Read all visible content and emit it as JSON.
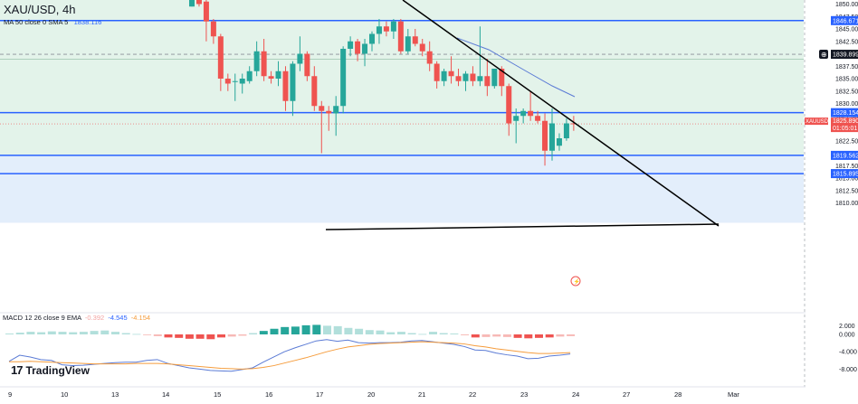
{
  "header": {
    "symbol": "XAU/USD, 4h",
    "indicator_label": "MA 50 close 0 SMA 5",
    "indicator_value": "1838.116"
  },
  "macd_header": {
    "label": "MACD 12 26 close 9 EMA",
    "hist": "-0.392",
    "macd": "-4.545",
    "signal": "-4.154"
  },
  "logo_text": "TradingView",
  "colors": {
    "up": "#26a69a",
    "down": "#ef5350",
    "hline": "#2962ff",
    "ma": "#5b7bd5",
    "trend": "#000000",
    "zone_green": "#e3f3ea",
    "zone_blue": "#e3eefb",
    "macd": "#5b7bd5",
    "signal": "#f59c3c"
  },
  "chart_data": {
    "type": "candlestick",
    "y_range": [
      1807.5,
      1850.5
    ],
    "y_ticks": [
      "1850.000",
      "1847.500",
      "1845.000",
      "1842.500",
      "1840.000",
      "1837.500",
      "1835.000",
      "1832.500",
      "1830.000",
      "1827.500",
      "1825.000",
      "1822.500",
      "1820.000",
      "1817.500",
      "1815.000",
      "1812.500",
      "1810.000"
    ],
    "x_ticks": [
      "9",
      "10",
      "13",
      "14",
      "15",
      "16",
      "17",
      "20",
      "21",
      "22",
      "23",
      "24",
      "27",
      "28",
      "Mar"
    ],
    "price_labels": [
      {
        "value": 1846.671,
        "text": "1846.671",
        "style": "blue"
      },
      {
        "value": 1839.899,
        "text": "1839.899",
        "style": "dark"
      },
      {
        "value": 1828.154,
        "text": "1828.154",
        "style": "blue"
      },
      {
        "value": 1825.89,
        "text": "XAUUSD",
        "text2": "1825.890",
        "text3": "01:05:01",
        "style": "red"
      },
      {
        "value": 1819.562,
        "text": "1819.562",
        "style": "blue"
      },
      {
        "value": 1815.895,
        "text": "1815.895",
        "style": "blue"
      }
    ],
    "horizontal_lines": [
      1846.671,
      1828.154,
      1819.562,
      1815.895
    ],
    "dashed_line": 1839.899,
    "current_price": 1825.89,
    "zones": [
      {
        "from": 1828.154,
        "to": 1846.671,
        "color": "green"
      },
      {
        "from": 1819.562,
        "to": 1828.154,
        "color": "green"
      },
      {
        "from": 1806.0,
        "to": 1819.562,
        "color": "blue"
      }
    ],
    "candles": [
      {
        "o": 1849.5,
        "h": 1851.5,
        "l": 1849.5,
        "c": 1851.5
      },
      {
        "o": 1851.5,
        "h": 1852.0,
        "l": 1849.5,
        "c": 1850.0
      },
      {
        "o": 1850.5,
        "h": 1851.5,
        "l": 1842.5,
        "c": 1846.5
      },
      {
        "o": 1846.5,
        "h": 1847.0,
        "l": 1842.0,
        "c": 1843.5
      },
      {
        "o": 1843.5,
        "h": 1844.0,
        "l": 1832.5,
        "c": 1835.0
      },
      {
        "o": 1835.0,
        "h": 1836.0,
        "l": 1832.5,
        "c": 1834.0
      },
      {
        "o": 1834.5,
        "h": 1836.0,
        "l": 1830.5,
        "c": 1834.5
      },
      {
        "o": 1834.0,
        "h": 1836.0,
        "l": 1832.0,
        "c": 1835.0
      },
      {
        "o": 1834.5,
        "h": 1837.5,
        "l": 1834.0,
        "c": 1836.5
      },
      {
        "o": 1836.5,
        "h": 1842.5,
        "l": 1835.5,
        "c": 1840.5
      },
      {
        "o": 1840.5,
        "h": 1843.0,
        "l": 1834.5,
        "c": 1835.5
      },
      {
        "o": 1835.5,
        "h": 1836.5,
        "l": 1834.0,
        "c": 1835.0
      },
      {
        "o": 1835.0,
        "h": 1838.5,
        "l": 1833.5,
        "c": 1836.5
      },
      {
        "o": 1836.5,
        "h": 1837.5,
        "l": 1828.5,
        "c": 1830.5
      },
      {
        "o": 1830.5,
        "h": 1838.5,
        "l": 1827.5,
        "c": 1838.0
      },
      {
        "o": 1838.0,
        "h": 1843.5,
        "l": 1836.5,
        "c": 1840.0
      },
      {
        "o": 1840.0,
        "h": 1840.5,
        "l": 1834.5,
        "c": 1835.5
      },
      {
        "o": 1835.5,
        "h": 1837.5,
        "l": 1828.5,
        "c": 1829.5
      },
      {
        "o": 1829.5,
        "h": 1830.5,
        "l": 1820.0,
        "c": 1828.5
      },
      {
        "o": 1828.5,
        "h": 1829.5,
        "l": 1824.5,
        "c": 1828.0
      },
      {
        "o": 1828.0,
        "h": 1831.5,
        "l": 1823.5,
        "c": 1829.5
      },
      {
        "o": 1829.5,
        "h": 1841.5,
        "l": 1828.0,
        "c": 1841.0
      },
      {
        "o": 1841.0,
        "h": 1843.5,
        "l": 1839.5,
        "c": 1842.5
      },
      {
        "o": 1842.5,
        "h": 1843.0,
        "l": 1838.5,
        "c": 1840.0
      },
      {
        "o": 1840.0,
        "h": 1843.0,
        "l": 1837.5,
        "c": 1842.0
      },
      {
        "o": 1842.0,
        "h": 1844.5,
        "l": 1840.5,
        "c": 1844.0
      },
      {
        "o": 1844.0,
        "h": 1847.0,
        "l": 1842.0,
        "c": 1845.5
      },
      {
        "o": 1845.5,
        "h": 1846.5,
        "l": 1843.5,
        "c": 1844.5
      },
      {
        "o": 1844.5,
        "h": 1847.0,
        "l": 1843.0,
        "c": 1846.5
      },
      {
        "o": 1846.5,
        "h": 1847.0,
        "l": 1840.0,
        "c": 1840.5
      },
      {
        "o": 1840.5,
        "h": 1845.0,
        "l": 1840.0,
        "c": 1843.5
      },
      {
        "o": 1843.5,
        "h": 1845.0,
        "l": 1841.5,
        "c": 1842.0
      },
      {
        "o": 1842.0,
        "h": 1843.0,
        "l": 1839.5,
        "c": 1840.5
      },
      {
        "o": 1840.5,
        "h": 1842.5,
        "l": 1836.5,
        "c": 1838.0
      },
      {
        "o": 1838.0,
        "h": 1838.5,
        "l": 1833.0,
        "c": 1834.5
      },
      {
        "o": 1834.5,
        "h": 1837.0,
        "l": 1833.5,
        "c": 1836.5
      },
      {
        "o": 1836.5,
        "h": 1839.5,
        "l": 1834.0,
        "c": 1835.5
      },
      {
        "o": 1835.5,
        "h": 1837.0,
        "l": 1833.5,
        "c": 1834.5
      },
      {
        "o": 1834.5,
        "h": 1836.5,
        "l": 1832.5,
        "c": 1836.0
      },
      {
        "o": 1836.0,
        "h": 1837.5,
        "l": 1833.5,
        "c": 1834.5
      },
      {
        "o": 1834.5,
        "h": 1845.5,
        "l": 1833.5,
        "c": 1835.5
      },
      {
        "o": 1835.5,
        "h": 1839.0,
        "l": 1831.5,
        "c": 1833.5
      },
      {
        "o": 1833.5,
        "h": 1837.0,
        "l": 1833.0,
        "c": 1837.0
      },
      {
        "o": 1837.0,
        "h": 1837.5,
        "l": 1831.5,
        "c": 1833.5
      },
      {
        "o": 1833.5,
        "h": 1834.0,
        "l": 1823.5,
        "c": 1826.0
      },
      {
        "o": 1826.5,
        "h": 1829.0,
        "l": 1822.0,
        "c": 1827.5
      },
      {
        "o": 1827.5,
        "h": 1829.0,
        "l": 1826.0,
        "c": 1828.5
      },
      {
        "o": 1828.5,
        "h": 1832.5,
        "l": 1826.5,
        "c": 1827.5
      },
      {
        "o": 1827.5,
        "h": 1828.5,
        "l": 1826.0,
        "c": 1826.5
      },
      {
        "o": 1826.5,
        "h": 1828.0,
        "l": 1817.5,
        "c": 1820.5
      },
      {
        "o": 1820.5,
        "h": 1829.0,
        "l": 1818.5,
        "c": 1826.0
      },
      {
        "o": 1821.5,
        "h": 1824.0,
        "l": 1820.5,
        "c": 1823.0
      },
      {
        "o": 1823.0,
        "h": 1827.0,
        "l": 1822.5,
        "c": 1826.0
      },
      {
        "o": 1826.0,
        "h": 1827.5,
        "l": 1824.5,
        "c": 1825.9
      }
    ],
    "ma50": [
      [
        1838.5,
        1839.6
      ],
      [
        1839.5,
        1839.2
      ],
      [
        1840.5,
        1838.4
      ],
      [
        1842.0,
        1836.8
      ]
    ],
    "trendline_upper": [
      [
        1838.5,
        1860.0
      ],
      [
        1851.0,
        1819.2
      ]
    ],
    "trendline_lower": [
      [
        1845.5,
        1819.2
      ],
      [
        1851.0,
        1819.6
      ]
    ],
    "macd_hist": [
      0.2,
      0.4,
      0.6,
      0.5,
      0.7,
      0.6,
      0.5,
      0.6,
      0.8,
      0.9,
      0.6,
      0.3,
      0.1,
      -0.1,
      -0.4,
      -0.7,
      -0.8,
      -1.0,
      -1.0,
      -1.1,
      -0.7,
      -0.5,
      -0.3,
      0.3,
      0.8,
      1.3,
      1.7,
      1.8,
      2.1,
      2.2,
      2.0,
      1.9,
      1.5,
      1.3,
      1.0,
      0.9,
      0.5,
      0.6,
      0.3,
      0.1,
      0.6,
      0.3,
      0.2,
      -0.2,
      -0.7,
      -0.6,
      -0.5,
      -0.6,
      -0.8,
      -0.9,
      -0.8,
      -0.7,
      -0.5,
      -0.4
    ],
    "macd_line": [
      -6.2,
      -4.8,
      -5.2,
      -5.8,
      -6.0,
      -7.0,
      -7.2,
      -7.1,
      -6.9,
      -6.7,
      -6.5,
      -6.4,
      -6.4,
      -6.0,
      -5.8,
      -6.7,
      -7.2,
      -7.7,
      -8.0,
      -8.3,
      -8.4,
      -8.5,
      -8.1,
      -7.7,
      -6.4,
      -5.2,
      -4.0,
      -3.1,
      -2.3,
      -1.5,
      -1.2,
      -1.6,
      -1.3,
      -1.9,
      -2.0,
      -1.9,
      -1.9,
      -1.8,
      -1.5,
      -1.4,
      -1.7,
      -2.0,
      -2.3,
      -2.8,
      -3.6,
      -3.7,
      -4.3,
      -4.7,
      -5.0,
      -5.6,
      -5.5,
      -5.0,
      -4.8,
      -4.5
    ],
    "signal_line": [
      -6.3,
      -6.3,
      -6.2,
      -6.3,
      -6.4,
      -6.5,
      -6.6,
      -6.7,
      -6.8,
      -6.8,
      -6.8,
      -6.8,
      -6.7,
      -6.7,
      -6.7,
      -6.8,
      -7.0,
      -7.2,
      -7.4,
      -7.6,
      -7.8,
      -7.9,
      -8.0,
      -7.9,
      -7.6,
      -7.2,
      -6.6,
      -6.0,
      -5.4,
      -4.7,
      -4.0,
      -3.4,
      -2.9,
      -2.6,
      -2.3,
      -2.1,
      -2.0,
      -1.9,
      -1.8,
      -1.7,
      -1.8,
      -1.9,
      -2.0,
      -2.2,
      -2.6,
      -2.9,
      -3.3,
      -3.6,
      -3.9,
      -4.2,
      -4.4,
      -4.4,
      -4.3,
      -4.2
    ],
    "macd_range": [
      -9.5,
      2.5
    ],
    "macd_ticks": [
      "2.000",
      "0.000",
      "-4.000",
      "-8.000"
    ]
  }
}
